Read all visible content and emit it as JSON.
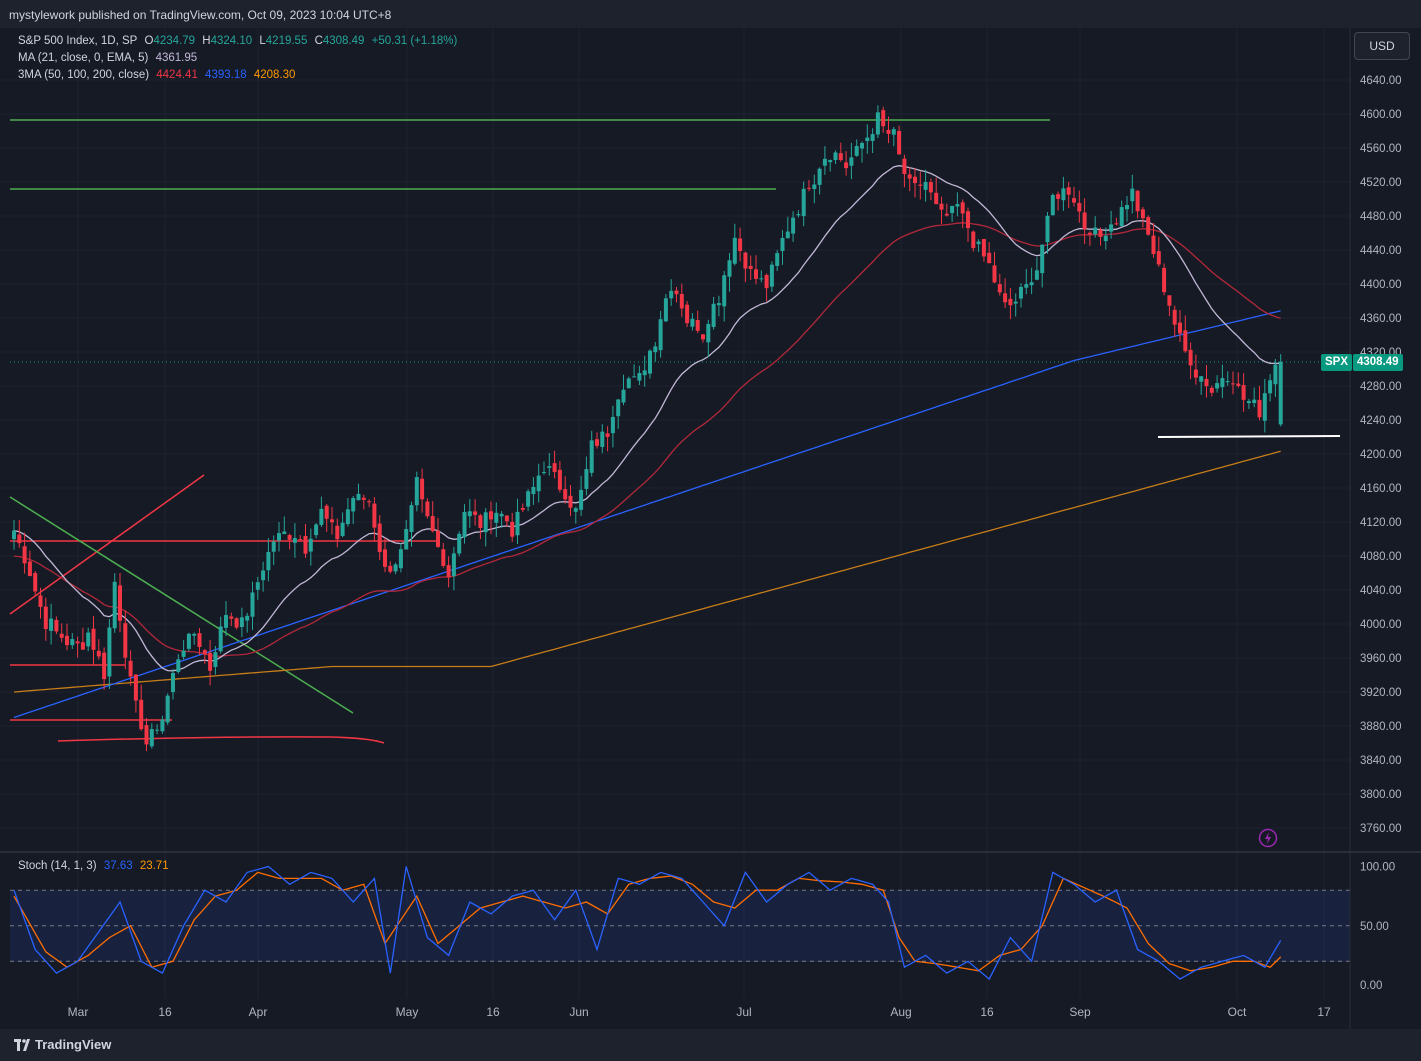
{
  "header": {
    "publish_note": "mystylework published on TradingView.com, Oct 09, 2023 10:04 UTC+8"
  },
  "legend": {
    "symbol": "S&P 500 Index, 1D, SP",
    "open_label": "O",
    "open": "4234.79",
    "high_label": "H",
    "high": "4324.10",
    "low_label": "L",
    "low": "4219.55",
    "close_label": "C",
    "close": "4308.49",
    "change": "+50.31 (+1.18%)",
    "ma_label": "MA (21, close, 0, EMA, 5)",
    "ma_value": "4361.95",
    "ma3_label": "3MA (50, 100, 200, close)",
    "ma50": "4424.41",
    "ma100": "4393.18",
    "ma200": "4208.30"
  },
  "stoch": {
    "label": "Stoch (14, 1, 3)",
    "k": "37.63",
    "d": "23.71"
  },
  "currency_button": "USD",
  "last_price": {
    "symbol": "SPX",
    "value": "4308.49"
  },
  "footer": {
    "brand": "TradingView"
  },
  "colors": {
    "up": "#26a69a",
    "down": "#f23645",
    "ma21": "#c2b8d6",
    "ma50": "#b2283a",
    "ma100": "#2962ff",
    "ma200": "#c77d18",
    "stoch_k": "#2962ff",
    "stoch_d": "#ff6d00"
  },
  "chart_data": {
    "type": "candlestick",
    "title": "S&P 500 Index, 1D, SP",
    "y_ticks": [
      "4640.00",
      "4600.00",
      "4560.00",
      "4520.00",
      "4480.00",
      "4440.00",
      "4400.00",
      "4360.00",
      "4320.00",
      "4280.00",
      "4240.00",
      "4200.00",
      "4160.00",
      "4120.00",
      "4080.00",
      "4040.00",
      "4000.00",
      "3960.00",
      "3920.00",
      "3880.00",
      "3840.00",
      "3800.00",
      "3760.00"
    ],
    "x_ticks": [
      "Mar",
      "16",
      "Apr",
      "May",
      "16",
      "Jun",
      "Jul",
      "Aug",
      "16",
      "Sep",
      "Oct",
      "17"
    ],
    "ylim": [
      3740,
      4660
    ],
    "stoch_ticks": [
      "100.00",
      "50.00",
      "0.00"
    ],
    "stoch_bands": [
      80,
      50,
      20
    ],
    "close_anchors": [
      [
        0,
        4110
      ],
      [
        3,
        4060
      ],
      [
        6,
        4000
      ],
      [
        9,
        3985
      ],
      [
        12,
        3975
      ],
      [
        14,
        3990
      ],
      [
        17,
        3940
      ],
      [
        19,
        4050
      ],
      [
        22,
        3925
      ],
      [
        25,
        3860
      ],
      [
        28,
        3890
      ],
      [
        31,
        3965
      ],
      [
        34,
        3990
      ],
      [
        37,
        3950
      ],
      [
        40,
        4015
      ],
      [
        43,
        3995
      ],
      [
        46,
        4050
      ],
      [
        49,
        4100
      ],
      [
        52,
        4110
      ],
      [
        55,
        4095
      ],
      [
        58,
        4130
      ],
      [
        61,
        4105
      ],
      [
        64,
        4150
      ],
      [
        67,
        4145
      ],
      [
        70,
        4060
      ],
      [
        73,
        4080
      ],
      [
        76,
        4160
      ],
      [
        79,
        4105
      ],
      [
        82,
        4060
      ],
      [
        85,
        4135
      ],
      [
        88,
        4120
      ],
      [
        91,
        4135
      ],
      [
        94,
        4115
      ],
      [
        97,
        4145
      ],
      [
        100,
        4190
      ],
      [
        103,
        4165
      ],
      [
        106,
        4130
      ],
      [
        109,
        4205
      ],
      [
        112,
        4230
      ],
      [
        115,
        4290
      ],
      [
        118,
        4285
      ],
      [
        121,
        4340
      ],
      [
        124,
        4405
      ],
      [
        127,
        4360
      ],
      [
        130,
        4345
      ],
      [
        133,
        4390
      ],
      [
        136,
        4455
      ],
      [
        139,
        4410
      ],
      [
        142,
        4400
      ],
      [
        145,
        4450
      ],
      [
        148,
        4495
      ],
      [
        151,
        4530
      ],
      [
        154,
        4560
      ],
      [
        157,
        4540
      ],
      [
        160,
        4565
      ],
      [
        163,
        4590
      ],
      [
        166,
        4570
      ],
      [
        169,
        4510
      ],
      [
        172,
        4520
      ],
      [
        175,
        4475
      ],
      [
        178,
        4490
      ],
      [
        181,
        4455
      ],
      [
        184,
        4420
      ],
      [
        187,
        4370
      ],
      [
        190,
        4385
      ],
      [
        193,
        4420
      ],
      [
        196,
        4500
      ],
      [
        199,
        4515
      ],
      [
        202,
        4470
      ],
      [
        205,
        4455
      ],
      [
        208,
        4480
      ],
      [
        211,
        4505
      ],
      [
        214,
        4455
      ],
      [
        217,
        4400
      ],
      [
        220,
        4330
      ],
      [
        223,
        4300
      ],
      [
        226,
        4275
      ],
      [
        229,
        4300
      ],
      [
        232,
        4265
      ],
      [
        235,
        4255
      ],
      [
        238,
        4308.49
      ]
    ],
    "stoch_k_anchors": [
      [
        0,
        80
      ],
      [
        4,
        30
      ],
      [
        8,
        10
      ],
      [
        12,
        20
      ],
      [
        16,
        45
      ],
      [
        20,
        70
      ],
      [
        24,
        20
      ],
      [
        28,
        10
      ],
      [
        32,
        50
      ],
      [
        36,
        80
      ],
      [
        40,
        70
      ],
      [
        44,
        95
      ],
      [
        48,
        100
      ],
      [
        52,
        85
      ],
      [
        56,
        95
      ],
      [
        60,
        90
      ],
      [
        64,
        70
      ],
      [
        68,
        90
      ],
      [
        71,
        10
      ],
      [
        74,
        100
      ],
      [
        78,
        40
      ],
      [
        82,
        25
      ],
      [
        86,
        70
      ],
      [
        90,
        60
      ],
      [
        94,
        75
      ],
      [
        98,
        80
      ],
      [
        102,
        55
      ],
      [
        106,
        80
      ],
      [
        110,
        30
      ],
      [
        114,
        90
      ],
      [
        118,
        85
      ],
      [
        122,
        95
      ],
      [
        126,
        90
      ],
      [
        130,
        70
      ],
      [
        134,
        50
      ],
      [
        138,
        95
      ],
      [
        142,
        70
      ],
      [
        146,
        85
      ],
      [
        150,
        95
      ],
      [
        154,
        80
      ],
      [
        158,
        90
      ],
      [
        162,
        85
      ],
      [
        165,
        70
      ],
      [
        168,
        15
      ],
      [
        172,
        25
      ],
      [
        176,
        10
      ],
      [
        180,
        20
      ],
      [
        184,
        5
      ],
      [
        188,
        40
      ],
      [
        192,
        20
      ],
      [
        196,
        95
      ],
      [
        200,
        85
      ],
      [
        204,
        70
      ],
      [
        208,
        80
      ],
      [
        212,
        30
      ],
      [
        216,
        20
      ],
      [
        220,
        5
      ],
      [
        224,
        15
      ],
      [
        228,
        20
      ],
      [
        232,
        25
      ],
      [
        236,
        15
      ],
      [
        239,
        37.63
      ]
    ],
    "stoch_d_anchors": [
      [
        0,
        75
      ],
      [
        6,
        28
      ],
      [
        10,
        15
      ],
      [
        14,
        25
      ],
      [
        18,
        40
      ],
      [
        22,
        50
      ],
      [
        26,
        15
      ],
      [
        30,
        20
      ],
      [
        34,
        55
      ],
      [
        38,
        75
      ],
      [
        42,
        80
      ],
      [
        46,
        95
      ],
      [
        50,
        90
      ],
      [
        54,
        90
      ],
      [
        58,
        90
      ],
      [
        62,
        80
      ],
      [
        66,
        85
      ],
      [
        70,
        35
      ],
      [
        73,
        55
      ],
      [
        76,
        75
      ],
      [
        80,
        35
      ],
      [
        84,
        50
      ],
      [
        88,
        65
      ],
      [
        92,
        70
      ],
      [
        96,
        75
      ],
      [
        100,
        70
      ],
      [
        104,
        65
      ],
      [
        108,
        70
      ],
      [
        112,
        60
      ],
      [
        116,
        85
      ],
      [
        120,
        90
      ],
      [
        124,
        92
      ],
      [
        128,
        85
      ],
      [
        132,
        70
      ],
      [
        136,
        65
      ],
      [
        140,
        80
      ],
      [
        144,
        80
      ],
      [
        148,
        90
      ],
      [
        152,
        88
      ],
      [
        156,
        87
      ],
      [
        160,
        85
      ],
      [
        164,
        80
      ],
      [
        167,
        40
      ],
      [
        170,
        20
      ],
      [
        174,
        18
      ],
      [
        178,
        15
      ],
      [
        182,
        12
      ],
      [
        186,
        25
      ],
      [
        190,
        30
      ],
      [
        194,
        50
      ],
      [
        198,
        90
      ],
      [
        202,
        82
      ],
      [
        206,
        74
      ],
      [
        210,
        65
      ],
      [
        214,
        35
      ],
      [
        218,
        18
      ],
      [
        222,
        12
      ],
      [
        226,
        15
      ],
      [
        230,
        20
      ],
      [
        234,
        20
      ],
      [
        237,
        15
      ],
      [
        239,
        23.71
      ]
    ]
  }
}
